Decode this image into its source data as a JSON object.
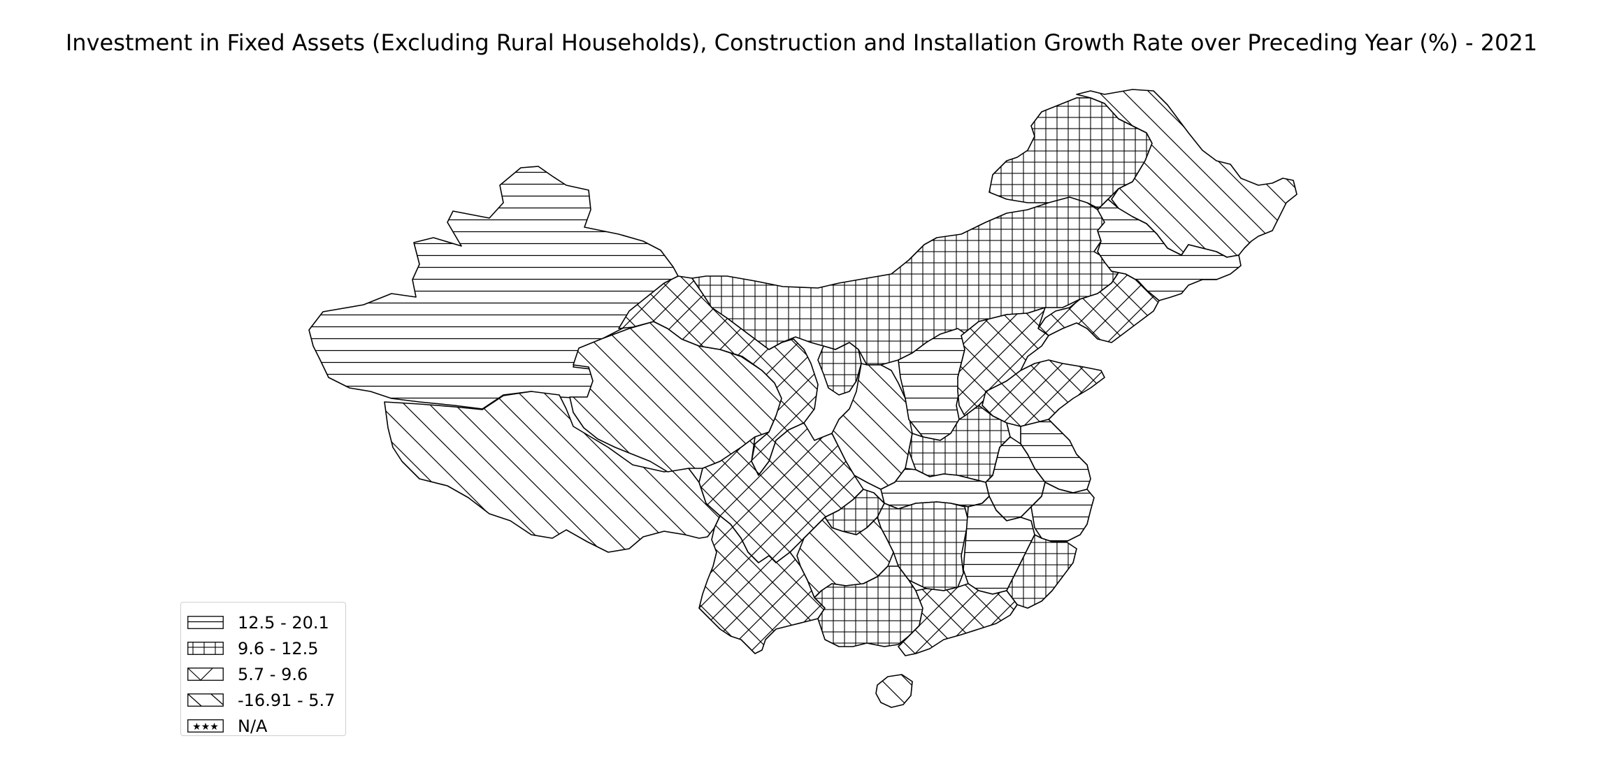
{
  "title": "Investment in Fixed Assets (Excluding Rural Households), Construction and Installation Growth Rate over Preceding Year (%) - 2021",
  "legend": [
    {
      "label": "12.5 - 20.1",
      "pattern": "horizontal"
    },
    {
      "label": "9.6 - 12.5",
      "pattern": "grid"
    },
    {
      "label": "5.7 - 9.6",
      "pattern": "cross"
    },
    {
      "label": "-16.91 - 5.7",
      "pattern": "diagonal"
    },
    {
      "label": "N/A",
      "pattern": "stars"
    }
  ],
  "regions": [
    {
      "name": "Xinjiang",
      "class": "12.5 - 20.1"
    },
    {
      "name": "Tibet",
      "class": "-16.91 - 5.7"
    },
    {
      "name": "Qinghai",
      "class": "-16.91 - 5.7"
    },
    {
      "name": "Gansu",
      "class": "5.7 - 9.6"
    },
    {
      "name": "Inner Mongolia",
      "class": "9.6 - 12.5"
    },
    {
      "name": "Heilongjiang",
      "class": "-16.91 - 5.7"
    },
    {
      "name": "Jilin",
      "class": "12.5 - 20.1"
    },
    {
      "name": "Liaoning",
      "class": "5.7 - 9.6"
    },
    {
      "name": "Ningxia",
      "class": "9.6 - 12.5"
    },
    {
      "name": "Shaanxi",
      "class": "-16.91 - 5.7"
    },
    {
      "name": "Shanxi",
      "class": "12.5 - 20.1"
    },
    {
      "name": "Hebei",
      "class": "5.7 - 9.6"
    },
    {
      "name": "Shandong",
      "class": "5.7 - 9.6"
    },
    {
      "name": "Henan",
      "class": "9.6 - 12.5"
    },
    {
      "name": "Jiangsu",
      "class": "12.5 - 20.1"
    },
    {
      "name": "Anhui",
      "class": "12.5 - 20.1"
    },
    {
      "name": "Hubei",
      "class": "12.5 - 20.1"
    },
    {
      "name": "Sichuan",
      "class": "5.7 - 9.6"
    },
    {
      "name": "Chongqing",
      "class": "9.6 - 12.5"
    },
    {
      "name": "Hunan",
      "class": "9.6 - 12.5"
    },
    {
      "name": "Jiangxi",
      "class": "12.5 - 20.1"
    },
    {
      "name": "Zhejiang",
      "class": "12.5 - 20.1"
    },
    {
      "name": "Fujian",
      "class": "9.6 - 12.5"
    },
    {
      "name": "Yunnan",
      "class": "5.7 - 9.6"
    },
    {
      "name": "Guizhou",
      "class": "-16.91 - 5.7"
    },
    {
      "name": "Guangxi",
      "class": "9.6 - 12.5"
    },
    {
      "name": "Guangdong",
      "class": "5.7 - 9.6"
    },
    {
      "name": "Hainan",
      "class": "-16.91 - 5.7"
    }
  ]
}
